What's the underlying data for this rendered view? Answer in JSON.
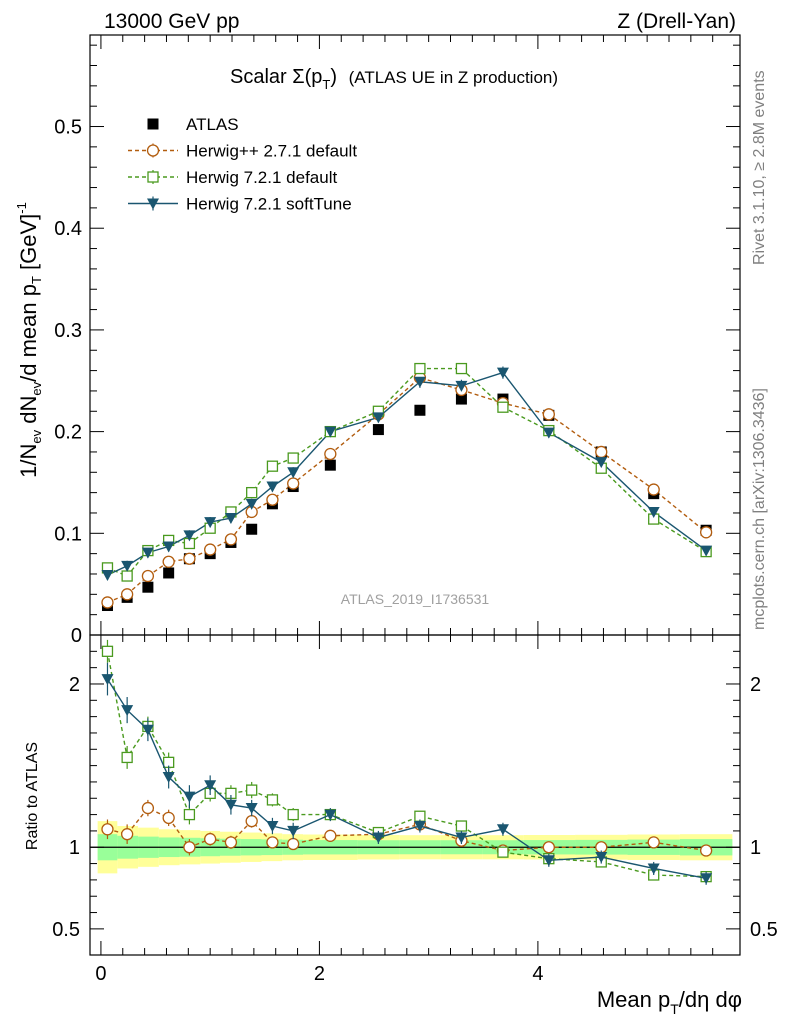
{
  "header": {
    "left": "13000 GeV pp",
    "right": "Z (Drell-Yan)",
    "side_top": "Rivet 3.1.10, ≥ 2.8M events",
    "side_bottom": "mcplots.cern.ch [arXiv:1306.3436]",
    "watermark": "ATLAS_2019_I1736531"
  },
  "chart_data": {
    "type": "scatter",
    "title_main": "Scalar Σ(p",
    "title_sub": "T",
    "title_end": ")",
    "title_note": "(ATLAS UE in Z production)",
    "xlabel": "Mean p",
    "xlabel_sub": "T",
    "xlabel_end": "/dη dφ",
    "ylabel": "1/N_ev dN_ev/d mean p_T [GeV]^-1",
    "ratio_ylabel": "Ratio to ATLAS",
    "xlim": [
      -0.1,
      5.85
    ],
    "ylim": [
      0,
      0.59
    ],
    "ratio_ylim": [
      0.34,
      2.3
    ],
    "x_ticks": [
      {
        "v": 0,
        "label": "0"
      },
      {
        "v": 2,
        "label": "2"
      },
      {
        "v": 4,
        "label": "4"
      }
    ],
    "y_ticks": [
      {
        "v": 0,
        "label": "0"
      },
      {
        "v": 0.1,
        "label": "0.1"
      },
      {
        "v": 0.2,
        "label": "0.2"
      },
      {
        "v": 0.3,
        "label": "0.3"
      },
      {
        "v": 0.4,
        "label": "0.4"
      },
      {
        "v": 0.5,
        "label": "0.5"
      }
    ],
    "ratio_ticks": [
      {
        "v": 0.5,
        "label": "0.5"
      },
      {
        "v": 1,
        "label": "1"
      },
      {
        "v": 2,
        "label": "2"
      }
    ],
    "x": [
      0.06,
      0.24,
      0.43,
      0.62,
      0.81,
      1.0,
      1.19,
      1.38,
      1.57,
      1.76,
      2.1,
      2.54,
      2.92,
      3.3,
      3.68,
      4.1,
      4.58,
      5.06,
      5.54
    ],
    "bin_edges": [
      -0.03,
      0.15,
      0.34,
      0.53,
      0.72,
      0.91,
      1.09,
      1.28,
      1.47,
      1.66,
      1.85,
      2.35,
      2.73,
      3.11,
      3.49,
      3.87,
      4.34,
      4.82,
      5.3,
      5.78
    ],
    "band_green": [
      0.08,
      0.07,
      0.065,
      0.06,
      0.058,
      0.055,
      0.052,
      0.05,
      0.048,
      0.046,
      0.044,
      0.043,
      0.043,
      0.043,
      0.043,
      0.044,
      0.045,
      0.047,
      0.05
    ],
    "band_yellow": [
      0.16,
      0.13,
      0.12,
      0.11,
      0.105,
      0.1,
      0.095,
      0.09,
      0.085,
      0.08,
      0.078,
      0.075,
      0.074,
      0.074,
      0.074,
      0.075,
      0.076,
      0.078,
      0.08
    ],
    "series": [
      {
        "name": "ATLAS",
        "style": "data",
        "color": "#000000",
        "marker": "square-filled",
        "values": [
          0.029,
          0.037,
          0.047,
          0.061,
          0.075,
          0.08,
          0.091,
          0.104,
          0.129,
          0.146,
          0.167,
          0.202,
          0.221,
          0.232,
          0.232,
          0.216,
          0.18,
          0.139,
          0.103
        ]
      },
      {
        "name": "Herwig++ 2.7.1 default",
        "style": "mc",
        "color": "#b25d0f",
        "marker": "circle-open",
        "dash": "4,3",
        "values": [
          0.032,
          0.04,
          0.058,
          0.072,
          0.075,
          0.084,
          0.094,
          0.121,
          0.133,
          0.149,
          0.178,
          0.217,
          0.253,
          0.241,
          0.228,
          0.217,
          0.18,
          0.143,
          0.101
        ],
        "errors": [
          0.002,
          0.002,
          0.002,
          0.003,
          0.003,
          0.003,
          0.003,
          0.004,
          0.004,
          0.004,
          0.004,
          0.004,
          0.004,
          0.004,
          0.004,
          0.004,
          0.003,
          0.003,
          0.003
        ],
        "ratio": [
          1.11,
          1.08,
          1.24,
          1.18,
          1.0,
          1.05,
          1.03,
          1.16,
          1.03,
          1.02,
          1.07,
          1.08,
          1.14,
          1.04,
          0.98,
          1.0,
          1.0,
          1.03,
          0.98
        ],
        "ratio_errors": [
          0.06,
          0.06,
          0.05,
          0.05,
          0.05,
          0.04,
          0.04,
          0.04,
          0.03,
          0.03,
          0.02,
          0.02,
          0.02,
          0.02,
          0.02,
          0.02,
          0.02,
          0.02,
          0.03
        ]
      },
      {
        "name": "Herwig 7.2.1 default",
        "style": "mc",
        "color": "#4a9a1f",
        "marker": "square-open",
        "dash": "4,3",
        "values": [
          0.066,
          0.058,
          0.083,
          0.093,
          0.09,
          0.105,
          0.121,
          0.14,
          0.166,
          0.174,
          0.2,
          0.22,
          0.262,
          0.262,
          0.224,
          0.201,
          0.164,
          0.114,
          0.082
        ],
        "errors": [
          0.004,
          0.004,
          0.004,
          0.004,
          0.004,
          0.004,
          0.004,
          0.005,
          0.005,
          0.005,
          0.004,
          0.004,
          0.005,
          0.005,
          0.004,
          0.004,
          0.004,
          0.003,
          0.003
        ],
        "ratio": [
          2.2,
          1.55,
          1.74,
          1.52,
          1.2,
          1.33,
          1.33,
          1.35,
          1.29,
          1.2,
          1.2,
          1.09,
          1.19,
          1.13,
          0.97,
          0.93,
          0.91,
          0.83,
          0.82
        ],
        "ratio_errors": [
          0.07,
          0.07,
          0.06,
          0.06,
          0.06,
          0.05,
          0.05,
          0.05,
          0.04,
          0.04,
          0.03,
          0.03,
          0.03,
          0.03,
          0.03,
          0.03,
          0.03,
          0.03,
          0.03
        ]
      },
      {
        "name": "Herwig 7.2.1 softTune",
        "style": "mc",
        "color": "#1a5670",
        "marker": "triangle-down",
        "dash": "",
        "values": [
          0.059,
          0.068,
          0.081,
          0.087,
          0.098,
          0.111,
          0.115,
          0.129,
          0.146,
          0.16,
          0.2,
          0.214,
          0.249,
          0.245,
          0.258,
          0.199,
          0.17,
          0.121,
          0.083
        ],
        "errors": [
          0.005,
          0.005,
          0.005,
          0.005,
          0.005,
          0.005,
          0.005,
          0.005,
          0.005,
          0.005,
          0.004,
          0.005,
          0.006,
          0.006,
          0.006,
          0.005,
          0.004,
          0.004,
          0.003
        ],
        "ratio": [
          2.03,
          1.84,
          1.72,
          1.43,
          1.31,
          1.38,
          1.26,
          1.24,
          1.13,
          1.1,
          1.2,
          1.06,
          1.13,
          1.06,
          1.11,
          0.92,
          0.94,
          0.87,
          0.81
        ],
        "ratio_errors": [
          0.1,
          0.08,
          0.07,
          0.07,
          0.07,
          0.06,
          0.06,
          0.05,
          0.05,
          0.05,
          0.04,
          0.04,
          0.04,
          0.04,
          0.04,
          0.04,
          0.04,
          0.04,
          0.04
        ]
      }
    ]
  }
}
